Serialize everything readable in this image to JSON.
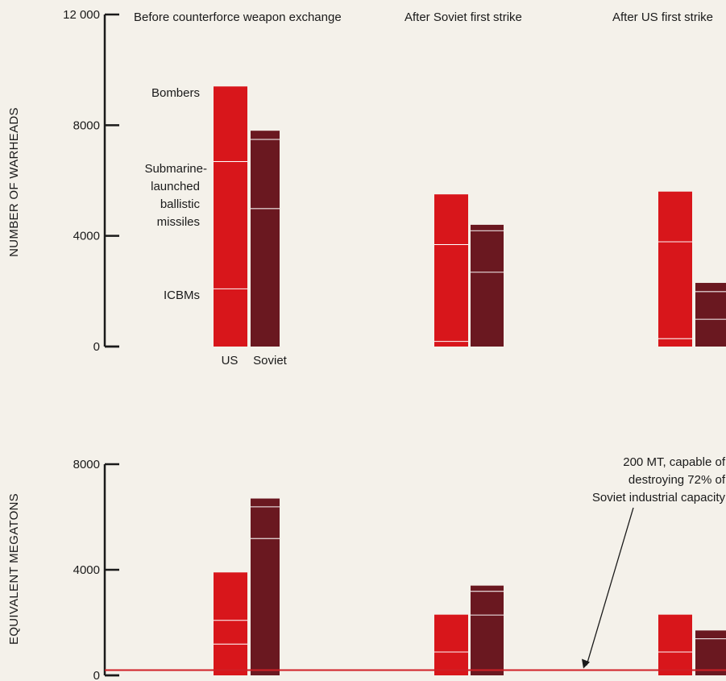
{
  "chart_data": {
    "type": "bar",
    "stacked": true,
    "panels": [
      {
        "id": "warheads",
        "ylabel": "NUMBER OF WARHEADS",
        "ylim": [
          0,
          12000
        ],
        "yticks": [
          0,
          4000,
          8000,
          12000
        ],
        "ytick_labels": [
          "0",
          "4000",
          "8000",
          "12 000"
        ]
      },
      {
        "id": "megatons",
        "ylabel": "EQUIVALENT MEGATONS",
        "ylim": [
          0,
          8000
        ],
        "yticks": [
          0,
          4000,
          8000
        ],
        "ytick_labels": [
          "0",
          "4000",
          "8000"
        ]
      }
    ],
    "groups": [
      {
        "title": "Before counterforce weapon exchange",
        "country_labels": [
          "US",
          "Soviet"
        ],
        "bars": [
          {
            "country": "US",
            "warheads": {
              "ICBMs": 2100,
              "Submarine-launched ballistic missiles": 4600,
              "Bombers": 2700
            },
            "megatons": {
              "ICBMs": 1200,
              "Submarine-launched ballistic missiles": 900,
              "Bombers": 1800
            }
          },
          {
            "country": "Soviet",
            "warheads": {
              "ICBMs": 5000,
              "Submarine-launched ballistic missiles": 2500,
              "Bombers": 300
            },
            "megatons": {
              "ICBMs": 5200,
              "Submarine-launched ballistic missiles": 1200,
              "Bombers": 300
            }
          }
        ]
      },
      {
        "title": "After Soviet first strike",
        "bars": [
          {
            "country": "US",
            "warheads": {
              "ICBMs": 200,
              "Submarine-launched ballistic missiles": 3500,
              "Bombers": 1800
            },
            "megatons": {
              "ICBMs": 200,
              "Submarine-launched ballistic missiles": 700,
              "Bombers": 1400
            }
          },
          {
            "country": "Soviet",
            "warheads": {
              "ICBMs": 2700,
              "Submarine-launched ballistic missiles": 1500,
              "Bombers": 200
            },
            "megatons": {
              "ICBMs": 2300,
              "Submarine-launched ballistic missiles": 900,
              "Bombers": 200
            }
          }
        ]
      },
      {
        "title": "After US first strike",
        "bars": [
          {
            "country": "US",
            "warheads": {
              "ICBMs": 300,
              "Submarine-launched ballistic missiles": 3500,
              "Bombers": 1800
            },
            "megatons": {
              "ICBMs": 200,
              "Submarine-launched ballistic missiles": 700,
              "Bombers": 1400
            }
          },
          {
            "country": "Soviet",
            "warheads": {
              "ICBMs": 1000,
              "Submarine-launched ballistic missiles": 1000,
              "Bombers": 300
            },
            "megatons": {
              "ICBMs": 200,
              "Submarine-launched ballistic missiles": 1200,
              "Bombers": 300
            }
          }
        ]
      }
    ],
    "component_labels": [
      "Bombers",
      "Submarine-launched ballistic missiles",
      "ICBMs"
    ],
    "component_label_lines": [
      "Submarine-",
      "launched",
      "ballistic",
      "missiles"
    ],
    "annotation": {
      "lines": [
        "200 MT, capable of",
        "destroying 72% of",
        "Soviet industrial capacity"
      ],
      "value": 200,
      "unit": "MT"
    },
    "reference_line": {
      "value": 200
    },
    "colors": {
      "US": "#d8161b",
      "Soviet": "#6a1820",
      "separator": "#ffffff",
      "reference_line": "#d01f26",
      "axis": "#1a1a1a"
    }
  }
}
